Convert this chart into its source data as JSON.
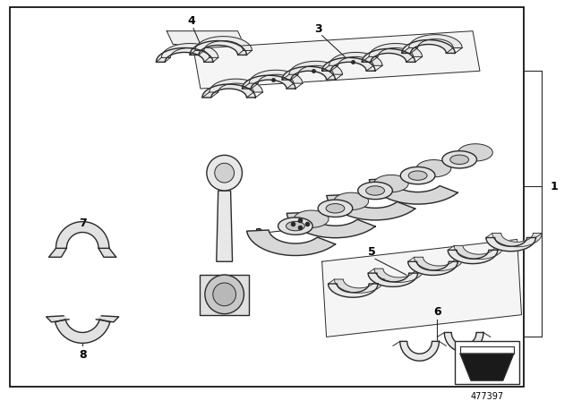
{
  "part_number": "477397",
  "background_color": "#ffffff",
  "border_color": "#000000",
  "line_color": "#2a2a2a",
  "label_color": "#000000",
  "fig_width": 6.4,
  "fig_height": 4.48,
  "dpi": 100
}
